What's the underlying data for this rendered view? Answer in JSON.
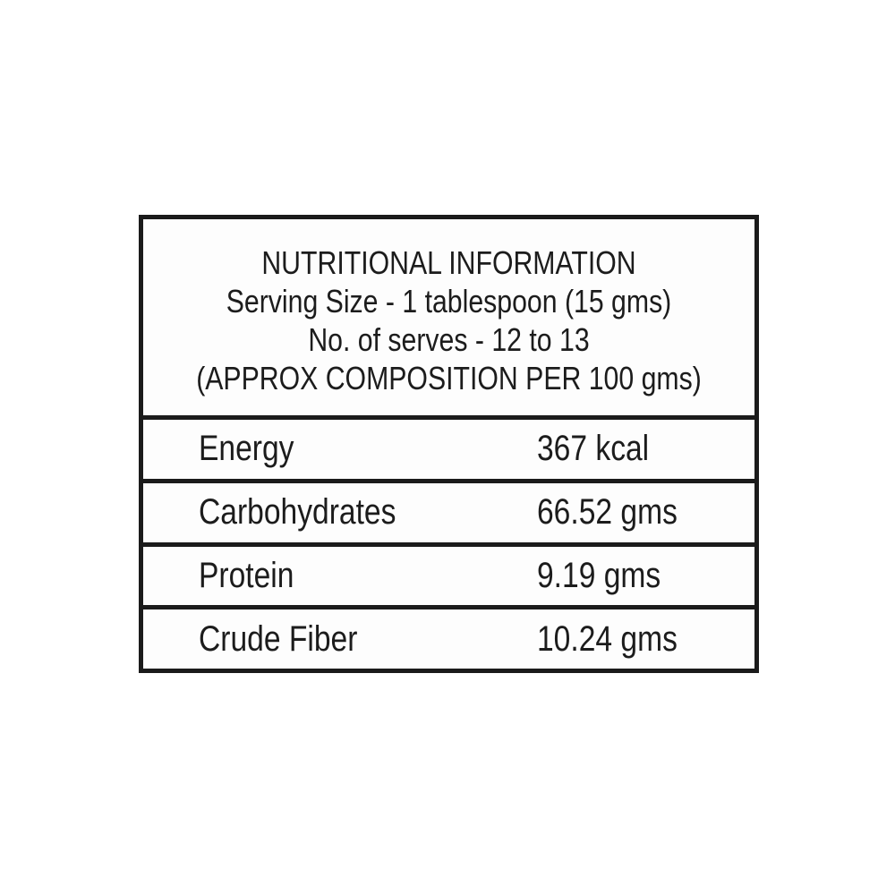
{
  "label": {
    "title": "NUTRITIONAL INFORMATION",
    "serving_size": "Serving Size - 1 tablespoon (15 gms)",
    "serves": "No. of serves - 12 to 13",
    "composition_note": "(APPROX COMPOSITION PER 100 gms)",
    "rows": [
      {
        "label": "Energy",
        "value": "367 kcal"
      },
      {
        "label": "Carbohydrates",
        "value": "66.52 gms"
      },
      {
        "label": "Protein",
        "value": "9.19 gms"
      },
      {
        "label": "Crude Fiber",
        "value": "10.24 gms"
      }
    ],
    "colors": {
      "border": "#1b1b1b",
      "text": "#1c1c1c",
      "background": "#ffffff"
    }
  }
}
